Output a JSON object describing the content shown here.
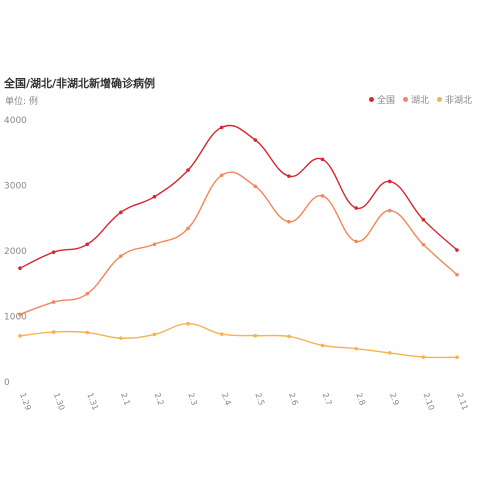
{
  "chart_data": {
    "type": "line",
    "title": "全国/湖北/非湖北新增确诊病例",
    "unit_label": "单位: 例",
    "categories": [
      "1.29",
      "1.30",
      "1.31",
      "2.1",
      "2.2",
      "2.3",
      "2.4",
      "2.5",
      "2.6",
      "2.7",
      "2.8",
      "2.9",
      "2.10",
      "2.11"
    ],
    "ylim": [
      0,
      4000
    ],
    "yticks": [
      0,
      1000,
      2000,
      3000,
      4000
    ],
    "ytick_labels": [
      "0",
      "1000",
      "2000",
      "3000",
      "4000"
    ],
    "grid": false,
    "legend_position": "top-right",
    "series": [
      {
        "name": "全国",
        "color": "#d7262f",
        "values": [
          1737,
          1982,
          2102,
          2590,
          2829,
          3235,
          3887,
          3694,
          3143,
          3399,
          2656,
          3062,
          2478,
          2015
        ]
      },
      {
        "name": "湖北",
        "color": "#f4865c",
        "values": [
          1032,
          1220,
          1347,
          1921,
          2103,
          2345,
          3156,
          2987,
          2447,
          2841,
          2147,
          2618,
          2097,
          1638
        ]
      },
      {
        "name": "非湖北",
        "color": "#f7b24f",
        "values": [
          705,
          762,
          755,
          669,
          726,
          890,
          731,
          707,
          696,
          558,
          509,
          444,
          381,
          377
        ]
      }
    ]
  }
}
